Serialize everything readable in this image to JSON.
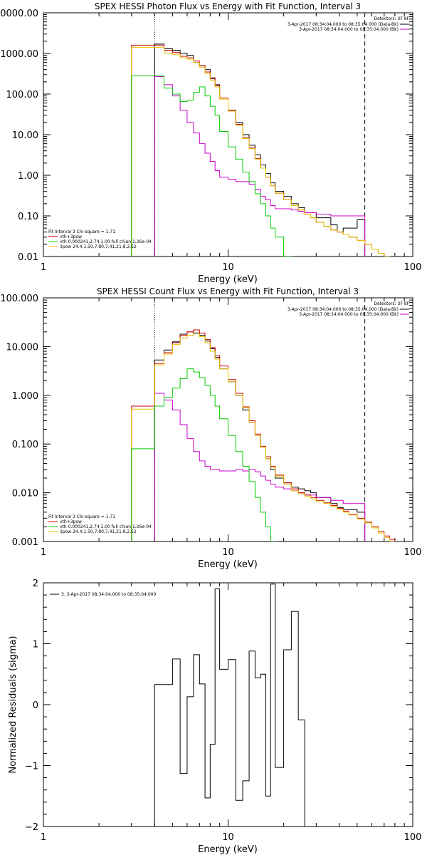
{
  "chart_data": [
    {
      "type": "line",
      "title": "SPEX HESSI Photon Flux vs Energy with Fit Function, Interval 3",
      "xlabel": "Energy (keV)",
      "ylabel": "",
      "xscale": "log",
      "yscale": "log",
      "xlim": [
        1,
        100
      ],
      "ylim": [
        0.01,
        10000
      ],
      "xticks": [
        "1",
        "10",
        "100"
      ],
      "yticks": [
        {
          "value": 0.01,
          "label": "0.01"
        },
        {
          "value": 0.1,
          "label": "0.10"
        },
        {
          "value": 1,
          "label": "1.00"
        },
        {
          "value": 10,
          "label": "10.00"
        },
        {
          "value": 100,
          "label": "100.00"
        },
        {
          "value": 1000,
          "label": "1000.00"
        },
        {
          "value": 10000,
          "label": "10000.00"
        }
      ],
      "vlines": [
        {
          "x": 4.0,
          "style": "dotted"
        },
        {
          "x": 55.0,
          "style": "dashed"
        }
      ],
      "top_legend": {
        "header": "Detectors: 3F 8F",
        "entries": [
          {
            "text": "3-Apr-2017 08:34:04.000 to 08:35:04.000 (Data-Bk)",
            "color": "#000000"
          },
          {
            "text": "3-Apr-2017 08:34:04.000 to 08:35:04.000 (Bk)",
            "color": "#cc00cc"
          }
        ]
      },
      "fit_legend": {
        "header": "Fit Interval 3   Chi-square = 1.71",
        "entries": [
          {
            "text": "vth+3pow",
            "color": "#cc0000"
          },
          {
            "text": "vth 0.000241,2.74,1.00  full chian 1.26e-04",
            "color": "#00cc00"
          },
          {
            "text": "3pow 24.4,1.50,7.80,7.41,21.8,2.52",
            "color": "#e6c300"
          }
        ]
      },
      "bin_edges": [
        3,
        4,
        4.5,
        5,
        5.5,
        6,
        6.5,
        7,
        7.5,
        8,
        8.5,
        9,
        10,
        11,
        12,
        13,
        14,
        15,
        16,
        17,
        18,
        20,
        22,
        24,
        26,
        28,
        30,
        33,
        36,
        39,
        42,
        45,
        50,
        55,
        60,
        65,
        70,
        75,
        80
      ],
      "series": [
        {
          "name": "",
          "color": "#000000",
          "start_bin": 1,
          "values": [
            1700,
            1300,
            1200,
            1000,
            900,
            600,
            500,
            400,
            250,
            170,
            80,
            40,
            20,
            10,
            5.5,
            3.2,
            1.8,
            1.1,
            0.65,
            0.4,
            0.3,
            0.2,
            0.16,
            0.12,
            0.12,
            0.09,
            0.09,
            0.06,
            0.04,
            0.05,
            0.05,
            0.08
          ]
        },
        {
          "name": "",
          "color": "#cc00cc",
          "start_bin": 1,
          "values": [
            270,
            170,
            90,
            40,
            20,
            11,
            6,
            3.5,
            2.2,
            1.3,
            0.9,
            0.8,
            0.7,
            0.7,
            0.6,
            0.45,
            0.3,
            0.25,
            0.18,
            0.15,
            0.15,
            0.14,
            0.13,
            0.12,
            0.12,
            0.11,
            0.11,
            0.1,
            0.1,
            0.1,
            0.1,
            0.1
          ]
        },
        {
          "name": "",
          "color": "#cc0000",
          "start_bin": 0,
          "values": [
            1600,
            1600,
            1200,
            1050,
            850,
            780,
            650,
            500,
            350,
            240,
            160,
            80,
            40,
            18,
            8.5,
            4.7,
            2.6,
            1.5,
            0.9,
            0.55,
            0.36,
            0.25,
            0.18,
            0.14,
            0.11,
            0.09,
            0.07,
            0.055,
            0.045,
            0.04,
            0.035,
            0.03,
            0.025,
            0.02,
            0.015,
            0.012,
            0.01,
            0.0085
          ]
        },
        {
          "name": "",
          "color": "#e6c300",
          "start_bin": 0,
          "values": [
            1400,
            1400,
            1000,
            950,
            780,
            720,
            600,
            460,
            320,
            220,
            150,
            75,
            38,
            17,
            8,
            4.5,
            2.5,
            1.5,
            0.9,
            0.55,
            0.36,
            0.25,
            0.18,
            0.14,
            0.11,
            0.09,
            0.07,
            0.055,
            0.045,
            0.04,
            0.035,
            0.03,
            0.025,
            0.02,
            0.015,
            0.012,
            0.01,
            0.0085
          ]
        },
        {
          "name": "",
          "color": "#00cc00",
          "start_bin": 0,
          "values": [
            280,
            280,
            140,
            100,
            65,
            70,
            110,
            150,
            90,
            50,
            30,
            12,
            5,
            2.5,
            1.2,
            0.7,
            0.35,
            0.2,
            0.1,
            0.05,
            0.03,
            0.01,
            0.008
          ]
        }
      ]
    },
    {
      "type": "line",
      "title": "SPEX HESSI Count Flux vs Energy with Fit Function, Interval 3",
      "xlabel": "Energy (keV)",
      "ylabel": "",
      "xscale": "log",
      "yscale": "log",
      "xlim": [
        1,
        100
      ],
      "ylim": [
        0.001,
        100
      ],
      "xticks": [
        "1",
        "10",
        "100"
      ],
      "yticks": [
        {
          "value": 0.001,
          "label": "0.001"
        },
        {
          "value": 0.01,
          "label": "0.010"
        },
        {
          "value": 0.1,
          "label": "0.100"
        },
        {
          "value": 1,
          "label": "1.000"
        },
        {
          "value": 10,
          "label": "10.000"
        },
        {
          "value": 100,
          "label": "100.000"
        }
      ],
      "vlines": [
        {
          "x": 4.0,
          "style": "dotted"
        },
        {
          "x": 55.0,
          "style": "dashed"
        }
      ],
      "top_legend": {
        "header": "Detectors: 3F 8F",
        "entries": [
          {
            "text": "3-Apr-2017 08:34:04.000 to 08:35:04.000 (Data-Bk)",
            "color": "#000000"
          },
          {
            "text": "3-Apr-2017 08:34:04.000 to 08:35:04.000 (Bk)",
            "color": "#cc00cc"
          }
        ]
      },
      "fit_legend": {
        "header": "Fit Interval 3   Chi-square = 1.71",
        "entries": [
          {
            "text": "vth+3pow",
            "color": "#cc0000"
          },
          {
            "text": "vth 0.000241,2.74,1.00  full chian 1.26e-04",
            "color": "#00cc00"
          },
          {
            "text": "3pow 24.4,1.50,7.80,7.41,21.8,2.52",
            "color": "#e6c300"
          }
        ]
      },
      "bin_edges": [
        3,
        4,
        4.5,
        5,
        5.5,
        6,
        6.5,
        7,
        7.5,
        8,
        8.5,
        9,
        10,
        11,
        12,
        13,
        14,
        15,
        16,
        17,
        18,
        20,
        22,
        24,
        26,
        28,
        30,
        33,
        36,
        39,
        42,
        45,
        50,
        55,
        60,
        65,
        70,
        75,
        80
      ],
      "series": [
        {
          "name": "",
          "color": "#000000",
          "start_bin": 1,
          "values": [
            5.3,
            8.5,
            12.5,
            18,
            20,
            19,
            17,
            13,
            9,
            6,
            3.5,
            1.9,
            1.0,
            0.5,
            0.28,
            0.15,
            0.085,
            0.05,
            0.03,
            0.02,
            0.016,
            0.013,
            0.012,
            0.011,
            0.01,
            0.008,
            0.008,
            0.006,
            0.005,
            0.0045,
            0.0045,
            0.004
          ]
        },
        {
          "name": "",
          "color": "#cc00cc",
          "start_bin": 1,
          "values": [
            1.1,
            0.8,
            0.5,
            0.25,
            0.13,
            0.07,
            0.045,
            0.035,
            0.03,
            0.03,
            0.028,
            0.028,
            0.03,
            0.028,
            0.03,
            0.027,
            0.022,
            0.018,
            0.015,
            0.013,
            0.012,
            0.011,
            0.01,
            0.009,
            0.009,
            0.008,
            0.008,
            0.007,
            0.007,
            0.006,
            0.006,
            0.006
          ]
        },
        {
          "name": "",
          "color": "#cc0000",
          "start_bin": 0,
          "values": [
            0.6,
            4.5,
            7.5,
            12,
            17,
            20,
            22,
            19,
            14,
            9.5,
            6.5,
            4,
            2.1,
            1.1,
            0.58,
            0.3,
            0.16,
            0.09,
            0.055,
            0.035,
            0.023,
            0.016,
            0.012,
            0.01,
            0.009,
            0.008,
            0.007,
            0.0062,
            0.0055,
            0.0048,
            0.0042,
            0.0036,
            0.003,
            0.0025,
            0.002,
            0.0016,
            0.0013,
            0.0011
          ]
        },
        {
          "name": "",
          "color": "#e6c300",
          "start_bin": 0,
          "values": [
            0.52,
            4.2,
            7,
            11,
            15,
            17,
            18.5,
            16,
            12,
            8,
            5.5,
            3.5,
            1.9,
            1.0,
            0.55,
            0.28,
            0.15,
            0.085,
            0.05,
            0.033,
            0.022,
            0.015,
            0.011,
            0.0095,
            0.0085,
            0.0075,
            0.0066,
            0.006,
            0.0053,
            0.0046,
            0.004,
            0.0035,
            0.0029,
            0.0024,
            0.0019,
            0.0015,
            0.0012,
            0.001
          ]
        },
        {
          "name": "",
          "color": "#00cc00",
          "start_bin": 0,
          "values": [
            0.08,
            0.6,
            0.9,
            1.4,
            2.2,
            3.5,
            3,
            2.3,
            1.6,
            1.0,
            0.6,
            0.33,
            0.15,
            0.07,
            0.035,
            0.017,
            0.008,
            0.004,
            0.002,
            0.001,
            0.0006
          ]
        }
      ]
    },
    {
      "type": "line",
      "title": "",
      "xlabel": "Energy (keV)",
      "ylabel": "Normalized Residuals (sigma)",
      "xscale": "log",
      "yscale": "linear",
      "xlim": [
        1,
        100
      ],
      "ylim": [
        -2,
        2
      ],
      "xticks": [
        "1",
        "10",
        "100"
      ],
      "yticks": [
        {
          "value": -2,
          "label": "−2"
        },
        {
          "value": -1,
          "label": "−1"
        },
        {
          "value": 0,
          "label": "0"
        },
        {
          "value": 1,
          "label": "1"
        },
        {
          "value": 2,
          "label": "2"
        }
      ],
      "legend": [
        {
          "text": "3.  3-Apr-2017 08:34:04.000 to 08:35:04.000",
          "color": "#000000"
        }
      ],
      "bin_edges": [
        4,
        5,
        5.5,
        6,
        6.5,
        7,
        7.5,
        8,
        8.5,
        9,
        10,
        11,
        12,
        13,
        14,
        15,
        16,
        17,
        18,
        20,
        22,
        24,
        26,
        28,
        30,
        33,
        36,
        39,
        42,
        45,
        50,
        55
      ],
      "series": [
        {
          "name": "",
          "color": "#000000",
          "start_bin": 0,
          "values": [
            0.33,
            0.75,
            -1.13,
            0.13,
            0.82,
            0.34,
            -1.53,
            -0.65,
            1.9,
            0.58,
            0.74,
            -1.57,
            -1.25,
            0.88,
            0.44,
            0.5,
            -1.5,
            1.98,
            -1.03,
            0.9,
            1.53,
            -0.25
          ]
        }
      ]
    }
  ]
}
